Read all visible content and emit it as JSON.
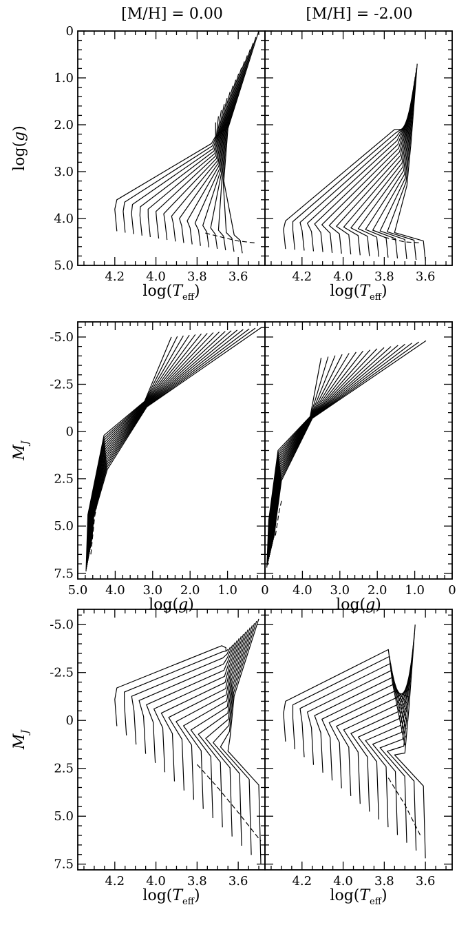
{
  "column_titles": [
    "[M/H] = 0.00",
    "[M/H] = -2.00"
  ],
  "colors": {
    "line": "#000000",
    "background": "#ffffff"
  },
  "chart_data": [
    {
      "type": "line",
      "row": 1,
      "column": 1,
      "metallicity": "[M/H] = 0.00",
      "title": "",
      "xlabel": "log(Teff)",
      "ylabel": "log(g)",
      "xlim": [
        4.38,
        3.47
      ],
      "ylim": [
        5.0,
        0.0
      ],
      "xticks": [
        "4.2",
        "4.0",
        "3.8",
        "3.6"
      ],
      "yticks": [
        "0",
        "1.0",
        "2.0",
        "3.0",
        "4.0",
        "5.0"
      ],
      "track_family": {
        "count": 16,
        "ms_blue": {
          "x": [
            4.19,
            3.58
          ],
          "y": [
            4.27,
            4.74
          ]
        },
        "turnoff": {
          "x": [
            4.19,
            3.62
          ],
          "y": [
            3.6,
            4.35
          ]
        },
        "subgiant_end": {
          "x": [
            3.73,
            3.67
          ],
          "y": [
            2.4,
            3.2
          ]
        },
        "red_giant_tip": {
          "x": [
            3.71,
            3.5
          ],
          "y": [
            1.95,
            0.0
          ]
        }
      },
      "dashed_track": {
        "x": [
          3.76,
          3.66,
          3.6,
          3.52
        ],
        "y": [
          4.31,
          4.42,
          4.48,
          4.52
        ]
      },
      "grid": false,
      "legend": "none"
    },
    {
      "type": "line",
      "row": 1,
      "column": 2,
      "metallicity": "[M/H] = -2.00",
      "title": "",
      "xlabel": "log(Teff)",
      "ylabel": "",
      "xlim": [
        4.38,
        3.47
      ],
      "ylim": [
        5.0,
        0.0
      ],
      "xticks": [
        "4.2",
        "4.0",
        "3.8",
        "3.6"
      ],
      "yticks": [],
      "track_family": {
        "count": 16,
        "ms_blue": {
          "x": [
            4.28,
            3.6
          ],
          "y": [
            4.65,
            4.9
          ]
        },
        "turnoff": {
          "x": [
            4.28,
            3.75
          ],
          "y": [
            4.05,
            4.3
          ]
        },
        "subgiant_end": {
          "x": [
            3.75,
            3.69
          ],
          "y": [
            2.1,
            3.3
          ]
        },
        "red_giant_tip": {
          "x": [
            3.69,
            3.64
          ],
          "y": [
            2.1,
            0.7
          ]
        }
      },
      "dashed_track": {
        "x": [
          3.8,
          3.7,
          3.62
        ],
        "y": [
          4.4,
          4.5,
          4.52
        ]
      },
      "grid": false,
      "legend": "none"
    },
    {
      "type": "line",
      "row": 2,
      "column": 1,
      "metallicity": "[M/H] = 0.00",
      "title": "",
      "xlabel": "log(g)",
      "ylabel": "MJ",
      "xlim": [
        5.0,
        0.0
      ],
      "ylim": [
        7.8,
        -5.8
      ],
      "xticks": [
        "5.0",
        "4.0",
        "3.0",
        "2.0",
        "1.0",
        "0"
      ],
      "yticks": [
        "-5.0",
        "-2.5",
        "0",
        "2.5",
        "5.0",
        "7.5"
      ],
      "track_family": {
        "count": 16,
        "ms_bottom": {
          "x": [
            4.78,
            4.62
          ],
          "y": [
            7.4,
            5.7
          ]
        },
        "ms_top": {
          "x": [
            4.3,
            4.15
          ],
          "y": [
            0.2,
            2.0
          ]
        },
        "giant_tip": {
          "x": [
            1.2,
            0.1
          ],
          "y": [
            -5.0,
            -5.5
          ]
        }
      },
      "dashed_track": {
        "x": [
          4.65,
          4.55,
          4.45
        ],
        "y": [
          6.5,
          4.5,
          3.5
        ]
      },
      "grid": false,
      "legend": "none"
    },
    {
      "type": "line",
      "row": 2,
      "column": 2,
      "metallicity": "[M/H] = -2.00",
      "title": "",
      "xlabel": "log(g)",
      "ylabel": "",
      "xlim": [
        5.0,
        0.0
      ],
      "ylim": [
        7.8,
        -5.8
      ],
      "xticks": [
        "4.0",
        "3.0",
        "2.0",
        "1.0",
        "0"
      ],
      "yticks": [],
      "track_family": {
        "count": 16,
        "ms_bottom": {
          "x": [
            4.95,
            4.75
          ],
          "y": [
            7.2,
            5.5
          ]
        },
        "ms_top": {
          "x": [
            4.65,
            4.5
          ],
          "y": [
            1.0,
            2.6
          ]
        },
        "giant_tip": {
          "x": [
            2.2,
            0.7
          ],
          "y": [
            -3.9,
            -4.8
          ]
        }
      },
      "dashed_track": {
        "x": [
          4.72,
          4.62,
          4.55
        ],
        "y": [
          5.5,
          4.2,
          3.6
        ]
      },
      "grid": false,
      "legend": "none"
    },
    {
      "type": "line",
      "row": 3,
      "column": 1,
      "metallicity": "[M/H] = 0.00",
      "title": "",
      "xlabel": "log(Teff)",
      "ylabel": "MJ",
      "xlim": [
        4.38,
        3.47
      ],
      "ylim": [
        7.8,
        -5.8
      ],
      "xticks": [
        "4.2",
        "4.0",
        "3.8",
        "3.6"
      ],
      "yticks": [
        "-5.0",
        "-2.5",
        "0",
        "2.5",
        "5.0",
        "7.5"
      ],
      "track_family": {
        "count": 16,
        "ms_blue": {
          "x": [
            4.19,
            3.49
          ],
          "y": [
            0.3,
            7.5
          ]
        },
        "turnoff": {
          "x": [
            4.19,
            3.65
          ],
          "y": [
            -1.7,
            1.6
          ]
        },
        "subgiant_end": {
          "x": [
            3.68,
            3.64
          ],
          "y": [
            -3.9,
            0.9
          ]
        },
        "red_giant_tip": {
          "x": [
            3.66,
            3.5
          ],
          "y": [
            -3.6,
            -5.3
          ]
        }
      },
      "dashed_track": {
        "x": [
          3.8,
          3.7,
          3.6,
          3.49
        ],
        "y": [
          2.3,
          3.5,
          4.8,
          6.3
        ]
      },
      "grid": false,
      "legend": "none"
    },
    {
      "type": "line",
      "row": 3,
      "column": 2,
      "metallicity": "[M/H] = -2.00",
      "title": "",
      "xlabel": "log(Teff)",
      "ylabel": "",
      "xlim": [
        4.38,
        3.47
      ],
      "ylim": [
        7.8,
        -5.8
      ],
      "xticks": [
        "4.2",
        "4.0",
        "3.8",
        "3.6"
      ],
      "yticks": [],
      "track_family": {
        "count": 16,
        "ms_blue": {
          "x": [
            4.28,
            3.6
          ],
          "y": [
            1.1,
            7.2
          ]
        },
        "turnoff": {
          "x": [
            4.28,
            3.75
          ],
          "y": [
            -1.0,
            1.8
          ]
        },
        "subgiant_end": {
          "x": [
            3.78,
            3.7
          ],
          "y": [
            -3.7,
            1.7
          ]
        },
        "red_giant_tip": {
          "x": [
            3.7,
            3.65
          ],
          "y": [
            1.3,
            -5.0
          ]
        }
      },
      "dashed_track": {
        "x": [
          3.78,
          3.7,
          3.62
        ],
        "y": [
          3.0,
          4.4,
          6.1
        ]
      },
      "grid": false,
      "legend": "none"
    }
  ]
}
